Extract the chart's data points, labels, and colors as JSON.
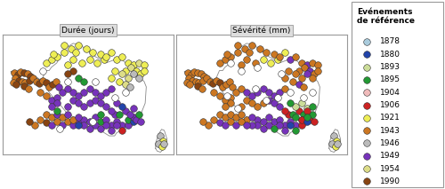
{
  "title_left": "Durée (jours)",
  "title_right": "Sévérité (mm)",
  "legend_title": "Evénements\nde référence",
  "legend_years": [
    1878,
    1880,
    1893,
    1895,
    1904,
    1906,
    1921,
    1943,
    1946,
    1949,
    1954,
    1990
  ],
  "year_colors": {
    "1878": "#aaccdd",
    "1880": "#2244aa",
    "1893": "#ccdd99",
    "1895": "#229933",
    "1904": "#f0bbbb",
    "1906": "#cc2222",
    "1921": "#eeee55",
    "1943": "#cc7722",
    "1946": "#bbbbbb",
    "1949": "#7733bb",
    "1954": "#dddd88",
    "1990": "#884411"
  },
  "figure_bg": "#ffffff",
  "panel_bg": "#ffffff",
  "title_bg": "#dddddd",
  "border_color": "#999999",
  "france_outline_color": "#888888",
  "marker_size": 5.5,
  "marker_linewidth": 0.4,
  "marker_edge_color": "#333333"
}
